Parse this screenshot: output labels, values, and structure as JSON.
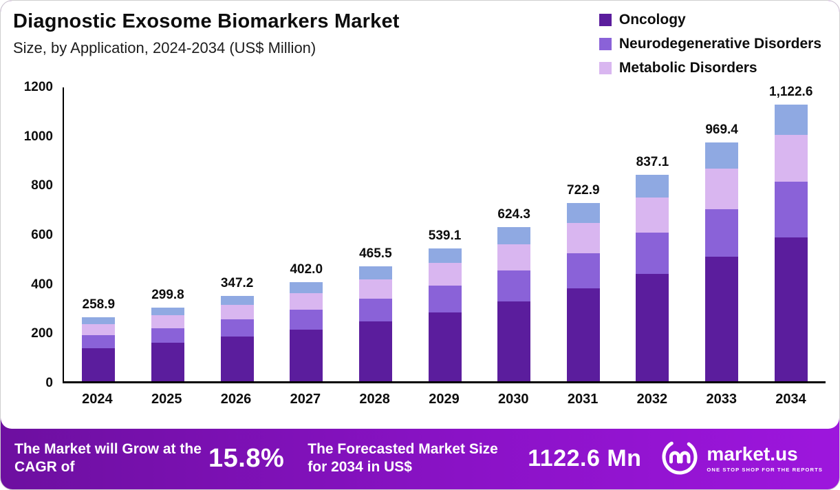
{
  "header": {
    "title": "Diagnostic Exosome Biomarkers Market",
    "subtitle": "Size, by Application, 2024-2034 (US$ Million)"
  },
  "legend": {
    "items": [
      {
        "label": "Oncology",
        "color": "#5b1d9d"
      },
      {
        "label": "Neurodegenerative Disorders",
        "color": "#8a62d8"
      },
      {
        "label": "Metabolic Disorders",
        "color": "#d9b6f0"
      }
    ]
  },
  "chart_data": {
    "type": "bar",
    "stacked": true,
    "title": "Diagnostic Exosome Biomarkers Market",
    "subtitle": "Size, by Application, 2024-2034 (US$ Million)",
    "xlabel": "",
    "ylabel": "US$ Million",
    "ylim": [
      0,
      1200
    ],
    "yticks": [
      0,
      200,
      400,
      600,
      800,
      1000,
      1200
    ],
    "grid": false,
    "legend_position": "top-right",
    "categories": [
      "2024",
      "2025",
      "2026",
      "2027",
      "2028",
      "2029",
      "2030",
      "2031",
      "2032",
      "2033",
      "2034"
    ],
    "totals": [
      258.9,
      299.8,
      347.2,
      402.0,
      465.5,
      539.1,
      624.3,
      722.9,
      837.1,
      969.4,
      1122.6
    ],
    "total_labels": [
      "258.9",
      "299.8",
      "347.2",
      "402.0",
      "465.5",
      "539.1",
      "624.3",
      "722.9",
      "837.1",
      "969.4",
      "1,122.6"
    ],
    "series": [
      {
        "name": "Oncology",
        "color": "#5b1d9d",
        "values": [
          134.6,
          155.9,
          180.5,
          209.0,
          242.1,
          280.3,
          324.6,
          375.9,
          435.3,
          504.1,
          583.8
        ]
      },
      {
        "name": "Neurodegenerative Disorders",
        "color": "#8a62d8",
        "values": [
          51.8,
          60.0,
          69.4,
          80.4,
          93.1,
          107.8,
          124.9,
          144.6,
          167.4,
          193.9,
          224.5
        ]
      },
      {
        "name": "Metabolic Disorders",
        "color": "#d9b6f0",
        "values": [
          44.0,
          51.0,
          59.0,
          68.3,
          79.1,
          91.6,
          106.1,
          122.9,
          142.3,
          164.8,
          190.8
        ]
      },
      {
        "name": "",
        "color": "#8fa9e2",
        "values": [
          28.5,
          32.9,
          38.3,
          44.3,
          51.2,
          59.4,
          68.7,
          79.5,
          92.1,
          106.6,
          123.5
        ]
      }
    ]
  },
  "footer": {
    "cagr_label": "The Market will Grow at the CAGR of",
    "cagr_value": "15.8%",
    "forecast_label": "The Forecasted Market Size for 2034 in US$",
    "forecast_value": "1122.6 Mn",
    "brand": "market.us",
    "tagline": "ONE STOP SHOP FOR THE REPORTS"
  }
}
